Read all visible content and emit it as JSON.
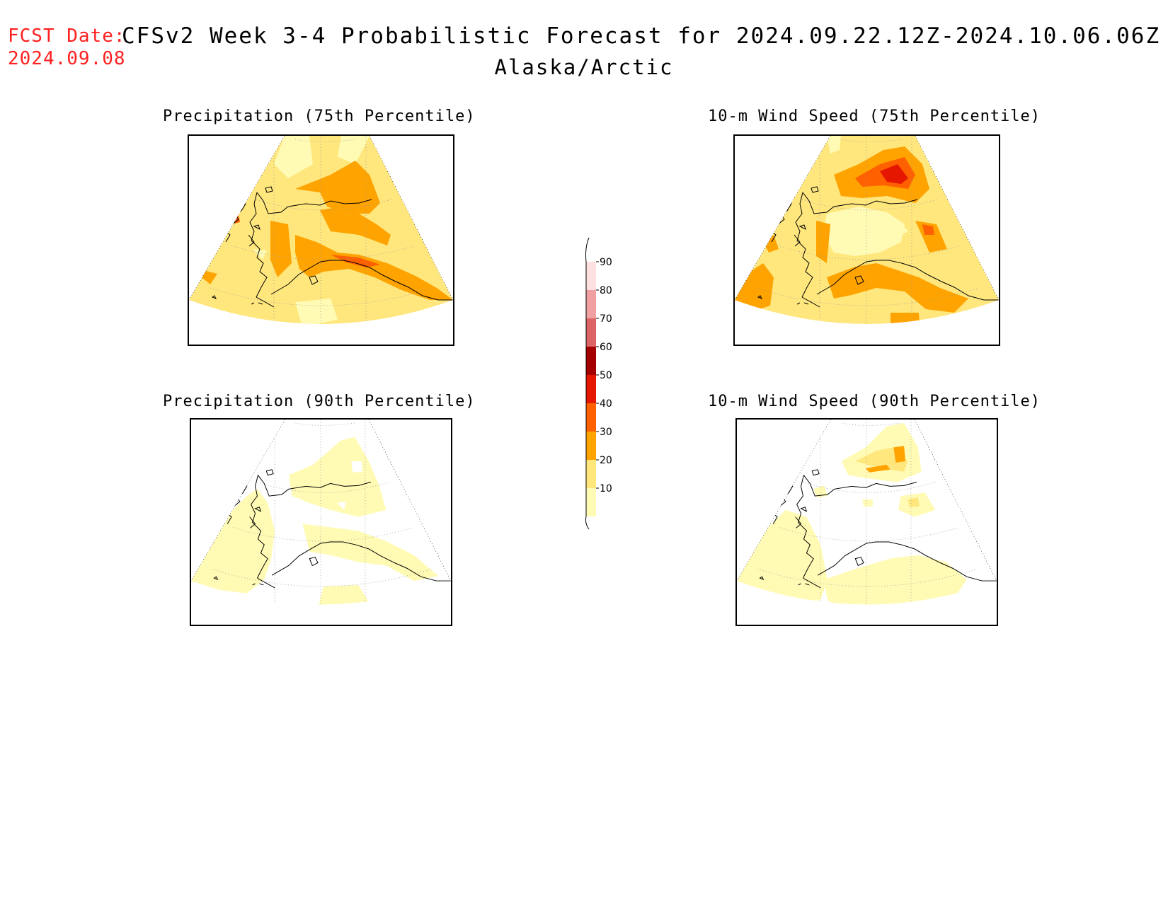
{
  "header": {
    "fcst_label": "FCST Date:",
    "fcst_date": "2024.09.08",
    "title": "CFSv2 Week 3-4 Probabilistic Forecast for 2024.09.22.12Z-2024.10.06.06Z",
    "subtitle": "Alaska/Arctic"
  },
  "panels": [
    {
      "title": "Precipitation (75th Percentile)",
      "variant": "p75"
    },
    {
      "title": "10-m Wind Speed (75th Percentile)",
      "variant": "w75"
    },
    {
      "title": "Precipitation (90th Percentile)",
      "variant": "p90"
    },
    {
      "title": "10-m Wind Speed (90th Percentile)",
      "variant": "w90"
    }
  ],
  "colorbar": {
    "levels": [
      "10",
      "20",
      "30",
      "40",
      "50",
      "60",
      "70",
      "80",
      "90"
    ],
    "colors": [
      "#fffbb4",
      "#ffe77e",
      "#ffa300",
      "#ff6000",
      "#e51700",
      "#a50000",
      "#dc6464",
      "#f0a0a0",
      "#ffe0e0"
    ]
  }
}
